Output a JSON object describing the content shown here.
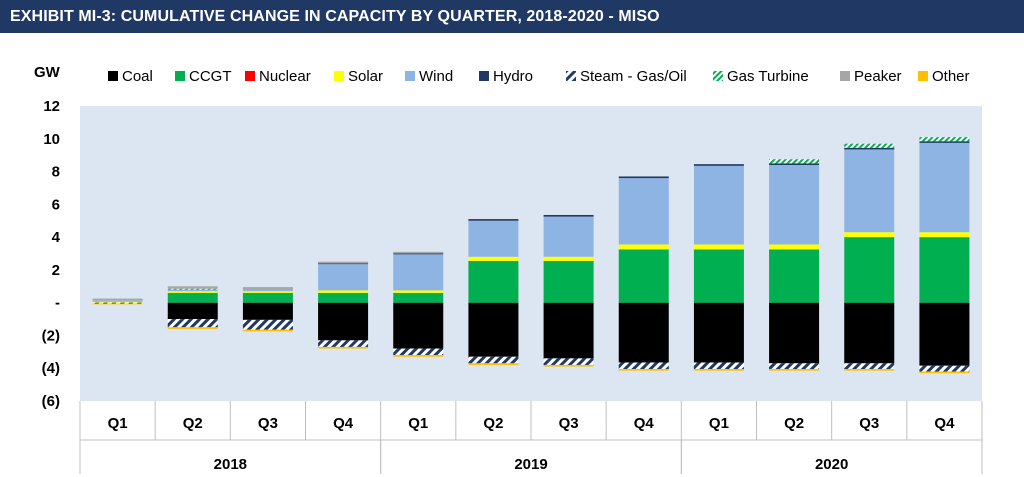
{
  "header": {
    "title": "EXHIBIT MI-3: CUMULATIVE CHANGE IN CAPACITY BY QUARTER,  2018-2020 - MISO"
  },
  "colors": {
    "banner": "#1f3864",
    "plot_background": "#dce6f2",
    "Coal": "#000000",
    "CCGT": "#00b050",
    "Nuclear": "#ff0000",
    "Solar": "#ffff00",
    "Wind": "#8eb4e3",
    "Hydro": "#1f3864",
    "Steam - Gas/Oil": "#1f3864",
    "Gas Turbine": "#00b050",
    "Peaker": "#a6a6a6",
    "Other": "#ffc000"
  },
  "chart_data": {
    "type": "bar",
    "stacked": true,
    "ylabel": "GW",
    "ylim": [
      -6,
      12
    ],
    "yticks": [
      12,
      10,
      8,
      6,
      4,
      2,
      0,
      -2,
      -4,
      -6
    ],
    "ytick_labels": [
      "12",
      "10",
      "8",
      "6",
      "4",
      "2",
      "-",
      "(2)",
      "(4)",
      "(6)"
    ],
    "grid": false,
    "legend_position": "top",
    "categories": [
      "Q1",
      "Q2",
      "Q3",
      "Q4",
      "Q1",
      "Q2",
      "Q3",
      "Q4",
      "Q1",
      "Q2",
      "Q3",
      "Q4"
    ],
    "groups": [
      {
        "label": "2018",
        "count": 4
      },
      {
        "label": "2019",
        "count": 4
      },
      {
        "label": "2020",
        "count": 4
      }
    ],
    "series": [
      {
        "name": "Coal",
        "pattern": "solid",
        "values": [
          0,
          -1.0,
          -1.05,
          -2.3,
          -2.8,
          -3.3,
          -3.4,
          -3.65,
          -3.65,
          -3.7,
          -3.7,
          -3.85
        ]
      },
      {
        "name": "CCGT",
        "pattern": "solid",
        "values": [
          0,
          0.6,
          0.6,
          0.6,
          0.6,
          2.55,
          2.55,
          3.25,
          3.25,
          3.25,
          4.0,
          4.0
        ]
      },
      {
        "name": "Nuclear",
        "pattern": "solid",
        "values": [
          0,
          0,
          0,
          0,
          0,
          0,
          0,
          0,
          0,
          0,
          0,
          0
        ]
      },
      {
        "name": "Solar",
        "pattern": "solid",
        "values": [
          0.05,
          0.1,
          0.1,
          0.15,
          0.15,
          0.25,
          0.25,
          0.3,
          0.3,
          0.3,
          0.3,
          0.3
        ]
      },
      {
        "name": "Wind",
        "pattern": "solid",
        "values": [
          0.1,
          0.1,
          0.1,
          1.6,
          2.2,
          2.2,
          2.45,
          4.05,
          4.8,
          4.85,
          5.05,
          5.45
        ]
      },
      {
        "name": "Hydro",
        "pattern": "solid",
        "values": [
          0,
          0,
          0,
          0.05,
          0.05,
          0.1,
          0.1,
          0.1,
          0.1,
          0.1,
          0.1,
          0.1
        ]
      },
      {
        "name": "Steam - Gas/Oil",
        "pattern": "hatch-diag",
        "values": [
          -0.05,
          -0.5,
          -0.6,
          -0.4,
          -0.4,
          -0.4,
          -0.4,
          -0.4,
          -0.4,
          -0.35,
          -0.35,
          -0.35
        ]
      },
      {
        "name": "Gas Turbine",
        "pattern": "hatch-green",
        "values": [
          0,
          0.05,
          0,
          0,
          0,
          0,
          0,
          0,
          0,
          0.25,
          0.25,
          0.25
        ]
      },
      {
        "name": "Peaker",
        "pattern": "solid",
        "values": [
          0.1,
          0.15,
          0.15,
          0.1,
          0.1,
          0,
          0,
          0,
          0,
          0,
          0,
          0
        ]
      },
      {
        "name": "Other",
        "pattern": "solid",
        "values": [
          -0.05,
          -0.1,
          -0.1,
          -0.1,
          -0.1,
          -0.1,
          -0.1,
          -0.1,
          -0.1,
          -0.1,
          -0.1,
          -0.1
        ]
      }
    ]
  }
}
